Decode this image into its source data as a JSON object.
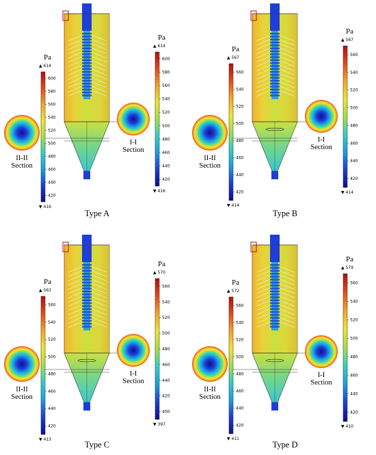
{
  "unit": "Pa",
  "section_labels": {
    "inner": "I-I",
    "outer": "II-II",
    "word": "Section"
  },
  "panels": [
    {
      "type_label": "Type A",
      "left_bar": {
        "max": "614",
        "min": "416",
        "ticks": [
          "600",
          "580",
          "560",
          "540",
          "520",
          "500",
          "480",
          "460",
          "440",
          "420"
        ]
      },
      "right_bar": {
        "max": "614",
        "min": "416",
        "ticks": [
          "600",
          "580",
          "560",
          "540",
          "520",
          "500",
          "480",
          "460",
          "440",
          "420"
        ]
      }
    },
    {
      "type_label": "Type B",
      "left_bar": {
        "max": "567",
        "min": "414",
        "ticks": [
          "560",
          "540",
          "520",
          "500",
          "480",
          "460",
          "440",
          "420"
        ]
      },
      "right_bar": {
        "max": "567",
        "min": "414",
        "ticks": [
          "560",
          "540",
          "520",
          "500",
          "480",
          "460",
          "440",
          "420"
        ]
      }
    },
    {
      "type_label": "Type C",
      "left_bar": {
        "max": "563",
        "min": "413",
        "ticks": [
          "560",
          "540",
          "520",
          "500",
          "480",
          "460",
          "440",
          "420"
        ]
      },
      "right_bar": {
        "max": "570",
        "min": "397",
        "ticks": [
          "560",
          "540",
          "520",
          "500",
          "480",
          "460",
          "440",
          "420",
          "400"
        ]
      }
    },
    {
      "type_label": "Type D",
      "left_bar": {
        "max": "572",
        "min": "411",
        "ticks": [
          "560",
          "540",
          "520",
          "500",
          "480",
          "460",
          "440",
          "420"
        ]
      },
      "right_bar": {
        "max": "579",
        "min": "410",
        "ticks": [
          "560",
          "540",
          "520",
          "500",
          "480",
          "460",
          "440",
          "420"
        ]
      }
    }
  ],
  "colors": {
    "colormap": [
      "#0d0d8f",
      "#1f3ed8",
      "#1aa0e0",
      "#2fd1c6",
      "#a6e04a",
      "#f2e52b",
      "#f5a623",
      "#e8491a",
      "#b01010"
    ],
    "column_field": "#e8d23a",
    "section_field_outer": "#e8491a",
    "section_field_center": "#1f3ed8",
    "stem": "#1f3ed8"
  }
}
